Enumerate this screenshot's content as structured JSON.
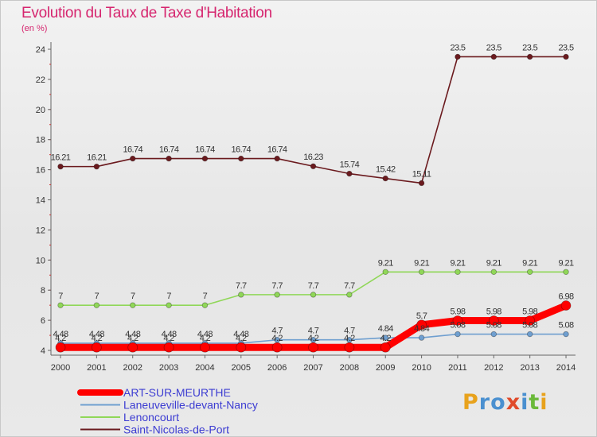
{
  "chart_data": {
    "type": "line",
    "title": "Evolution du Taux de Taxe d'Habitation",
    "subtitle": "(en %)",
    "x": [
      "2000",
      "2001",
      "2002",
      "2003",
      "2004",
      "2005",
      "2006",
      "2007",
      "2008",
      "2009",
      "2010",
      "2011",
      "2012",
      "2013",
      "2014"
    ],
    "ylim": [
      4,
      24
    ],
    "yticks": [
      "4",
      "6",
      "8",
      "10",
      "12",
      "14",
      "16",
      "18",
      "20",
      "22",
      "24"
    ],
    "grid": false,
    "legend_position": "bottom-left",
    "series": [
      {
        "name": "Saint-Nicolas-de-Port",
        "color": "#6b1a1e",
        "values": [
          16.21,
          16.21,
          16.74,
          16.74,
          16.74,
          16.74,
          16.74,
          16.23,
          15.74,
          15.42,
          15.11,
          23.5,
          23.5,
          23.5,
          23.5
        ],
        "labels": [
          "16.21",
          "16.21",
          "16.74",
          "16.74",
          "16.74",
          "16.74",
          "16.74",
          "16.23",
          "15.74",
          "15.42",
          "15.11",
          "23.5",
          "23.5",
          "23.5",
          "23.5"
        ]
      },
      {
        "name": "Lenoncourt",
        "color": "#90d758",
        "values": [
          7,
          7,
          7,
          7,
          7,
          7.7,
          7.7,
          7.7,
          7.7,
          9.21,
          9.21,
          9.21,
          9.21,
          9.21,
          9.21
        ],
        "labels": [
          "7",
          "7",
          "7",
          "7",
          "7",
          "7.7",
          "7.7",
          "7.7",
          "7.7",
          "9.21",
          "9.21",
          "9.21",
          "9.21",
          "9.21",
          "9.21"
        ]
      },
      {
        "name": "Laneuveville-devant-Nancy",
        "color": "#6f9fd0",
        "values": [
          4.48,
          4.48,
          4.48,
          4.48,
          4.48,
          4.48,
          4.7,
          4.7,
          4.7,
          4.84,
          4.84,
          5.08,
          5.08,
          5.08,
          5.08
        ],
        "labels": [
          "4.48",
          "4.48",
          "4.48",
          "4.48",
          "4.48",
          "4.48",
          "4.7",
          "4.7",
          "4.7",
          "4.84",
          "4.84",
          "5.08",
          "5.08",
          "5.08",
          "5.08"
        ]
      },
      {
        "name": "ART-SUR-MEURTHE",
        "color": "#ff0000",
        "values": [
          4.2,
          4.2,
          4.2,
          4.2,
          4.2,
          4.2,
          4.2,
          4.2,
          4.2,
          4.2,
          5.7,
          5.98,
          5.98,
          5.98,
          6.98
        ],
        "labels": [
          "4.2",
          "4.2",
          "4.2",
          "4.2",
          "4.2",
          "4.2",
          "4.2",
          "4.2",
          "4.2",
          "4.2",
          "5.7",
          "5.98",
          "5.98",
          "5.98",
          "6.98"
        ]
      }
    ],
    "legend_order": [
      "ART-SUR-MEURTHE",
      "Laneuveville-devant-Nancy",
      "Lenoncourt",
      "Saint-Nicolas-de-Port"
    ]
  },
  "logo": {
    "text": "Proxiti",
    "letters": [
      "P",
      "r",
      "o",
      "x",
      "i",
      "t",
      "i"
    ],
    "colors": [
      "#e8a21c",
      "#4a90d0",
      "#4a90d0",
      "#e04a2a",
      "#4a90d0",
      "#6bb93a",
      "#e8a21c"
    ]
  }
}
